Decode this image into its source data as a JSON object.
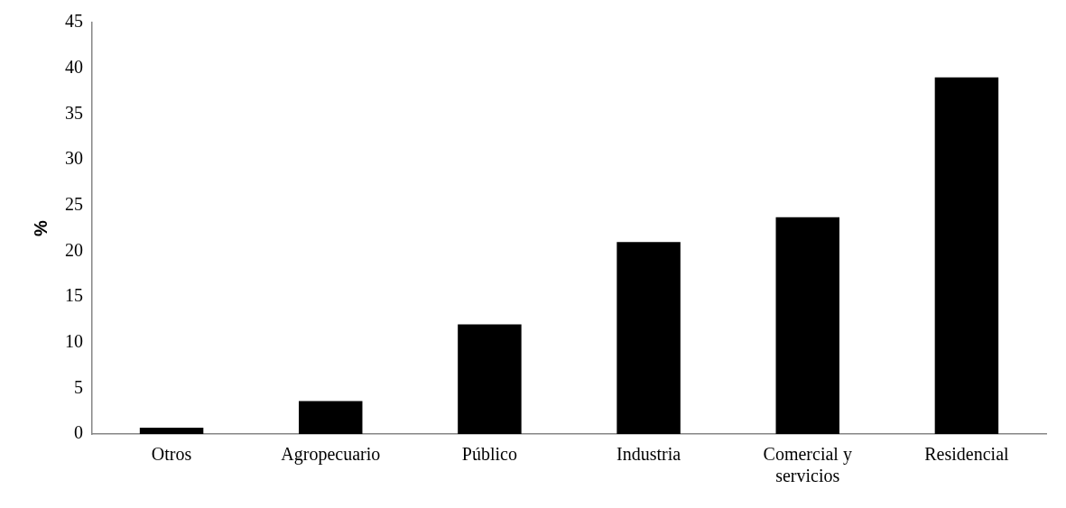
{
  "chart_data": {
    "type": "bar",
    "ylabel": "%",
    "categories": [
      "Otros",
      "Agropecuario",
      "Público",
      "Industria",
      "Comercial y servicios",
      "Residencial"
    ],
    "values": [
      0.7,
      3.6,
      12.0,
      21.0,
      23.7,
      39.0
    ],
    "color": "#000000",
    "ylim": [
      0,
      45
    ],
    "yticks": [
      0,
      5,
      10,
      15,
      20,
      25,
      30,
      35,
      40,
      45
    ],
    "grid": false,
    "legend": false
  }
}
